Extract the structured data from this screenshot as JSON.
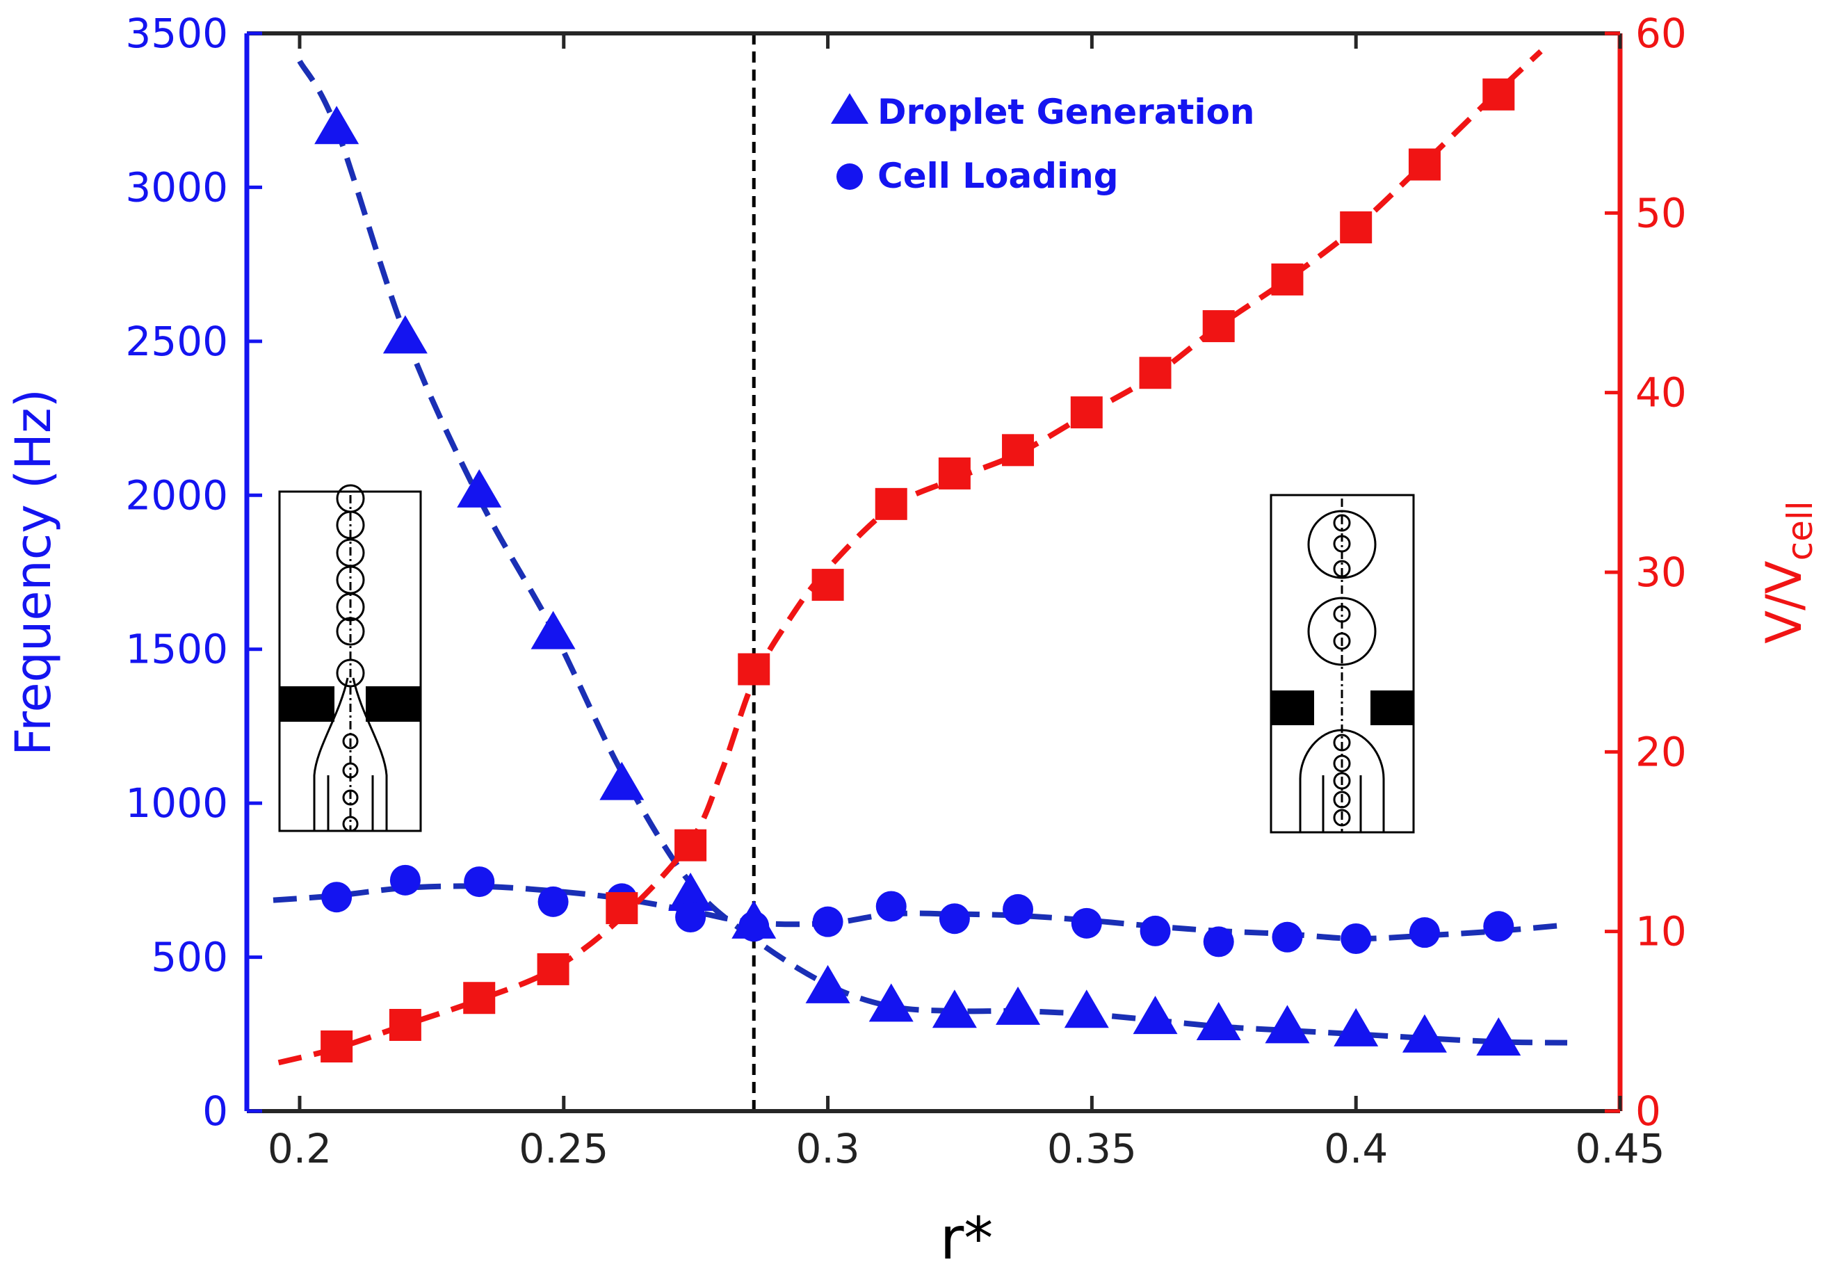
{
  "chart_data": {
    "type": "line",
    "xlabel": "r*",
    "ylabel_left": "Frequency (Hz)",
    "ylabel_right_main": "V/V",
    "ylabel_right_sub": "cell",
    "xlim": [
      0.19,
      0.45
    ],
    "ylim_left": [
      0,
      3500
    ],
    "ylim_right": [
      0,
      60
    ],
    "x_ticks": [
      "0.2",
      "0.25",
      "0.3",
      "0.35",
      "0.4",
      "0.45"
    ],
    "y_left_ticks": [
      "0",
      "500",
      "1000",
      "1500",
      "2000",
      "2500",
      "3000",
      "3500"
    ],
    "y_right_ticks": [
      "0",
      "10",
      "20",
      "30",
      "40",
      "50",
      "60"
    ],
    "vline_x": 0.286,
    "colors": {
      "blue": "#1414f0",
      "red": "#f01414",
      "darkblue": "#1a2fb5"
    },
    "legend": {
      "droplet_label": "Droplet Generation",
      "cell_label": "Cell Loading"
    },
    "series": [
      {
        "name": "Droplet Generation",
        "axis": "left",
        "marker": "triangle",
        "x": [
          0.207,
          0.22,
          0.234,
          0.248,
          0.261,
          0.274,
          0.286,
          0.3,
          0.312,
          0.324,
          0.336,
          0.349,
          0.362,
          0.374,
          0.387,
          0.4,
          0.413,
          0.427
        ],
        "values": [
          3190,
          2510,
          2010,
          1550,
          1060,
          700,
          610,
          400,
          340,
          320,
          330,
          320,
          300,
          280,
          270,
          260,
          240,
          230
        ]
      },
      {
        "name": "Cell Loading",
        "axis": "left",
        "marker": "circle",
        "x": [
          0.207,
          0.22,
          0.234,
          0.248,
          0.261,
          0.274,
          0.286,
          0.3,
          0.312,
          0.324,
          0.336,
          0.349,
          0.362,
          0.374,
          0.387,
          0.4,
          0.413,
          0.427
        ],
        "values": [
          695,
          750,
          745,
          680,
          690,
          630,
          600,
          615,
          665,
          625,
          655,
          610,
          585,
          550,
          565,
          560,
          580,
          600
        ]
      },
      {
        "name": "V/Vcell",
        "axis": "right",
        "marker": "square",
        "x": [
          0.207,
          0.22,
          0.234,
          0.248,
          0.261,
          0.274,
          0.286,
          0.3,
          0.312,
          0.324,
          0.336,
          0.349,
          0.362,
          0.374,
          0.387,
          0.4,
          0.413,
          0.427
        ],
        "values": [
          3.6,
          4.8,
          6.3,
          7.9,
          11.3,
          14.8,
          24.6,
          29.3,
          33.8,
          35.5,
          36.8,
          38.9,
          41.1,
          43.7,
          46.3,
          49.2,
          52.7,
          56.6
        ]
      }
    ],
    "fit_droplet": {
      "x": [
        0.2,
        0.207,
        0.22,
        0.234,
        0.248,
        0.261,
        0.274,
        0.286,
        0.3,
        0.312,
        0.324,
        0.336,
        0.349,
        0.362,
        0.374,
        0.387,
        0.4,
        0.413,
        0.427,
        0.44
      ],
      "values": [
        3410,
        3190,
        2520,
        1990,
        1560,
        1100,
        740,
        560,
        410,
        340,
        325,
        325,
        315,
        295,
        275,
        262,
        250,
        237,
        225,
        222
      ]
    },
    "fit_cell": {
      "x": [
        0.195,
        0.207,
        0.22,
        0.234,
        0.248,
        0.261,
        0.274,
        0.286,
        0.3,
        0.312,
        0.324,
        0.336,
        0.349,
        0.362,
        0.374,
        0.387,
        0.4,
        0.413,
        0.427,
        0.44
      ],
      "values": [
        685,
        700,
        725,
        730,
        715,
        690,
        650,
        612,
        610,
        640,
        640,
        635,
        620,
        600,
        585,
        575,
        560,
        570,
        585,
        605
      ]
    },
    "fit_volume": {
      "x": [
        0.196,
        0.207,
        0.22,
        0.234,
        0.248,
        0.261,
        0.274,
        0.28,
        0.286,
        0.293,
        0.3,
        0.312,
        0.324,
        0.336,
        0.349,
        0.362,
        0.374,
        0.387,
        0.4,
        0.413,
        0.427,
        0.435
      ],
      "values": [
        2.7,
        3.5,
        4.8,
        6.2,
        7.9,
        10.8,
        15.0,
        19.0,
        24.0,
        27.5,
        30.2,
        33.6,
        35.2,
        36.6,
        38.8,
        41.0,
        43.7,
        46.3,
        49.2,
        52.8,
        56.8,
        59.0
      ]
    }
  }
}
